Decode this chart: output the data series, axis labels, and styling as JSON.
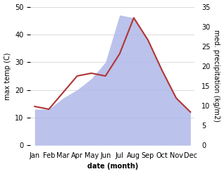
{
  "months": [
    "Jan",
    "Feb",
    "Mar",
    "Apr",
    "May",
    "Jun",
    "Jul",
    "Aug",
    "Sep",
    "Oct",
    "Nov",
    "Dec"
  ],
  "max_temp": [
    14,
    13,
    19,
    25,
    26,
    25,
    33,
    46,
    38,
    27,
    17,
    12
  ],
  "precipitation": [
    13,
    13,
    17,
    20,
    24,
    30,
    47,
    46,
    38,
    27,
    17,
    12
  ],
  "temp_ylim": [
    0,
    50
  ],
  "precip_ylim": [
    0,
    35
  ],
  "temp_color": "#b03535",
  "precip_fill_color": "#b0b8e8",
  "xlabel": "date (month)",
  "ylabel_left": "max temp (C)",
  "ylabel_right": "med. precipitation (kg/m2)",
  "grid_color": "#cccccc",
  "tick_fontsize": 7,
  "label_fontsize": 7
}
